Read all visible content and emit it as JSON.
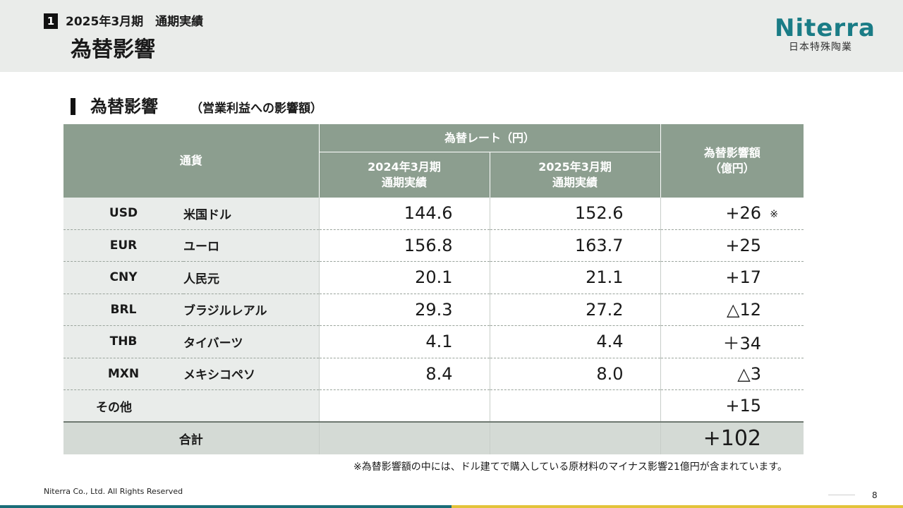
{
  "header": {
    "section_number": "1",
    "period": "2025年3月期　通期実績",
    "title": "為替影響"
  },
  "logo": {
    "word": "Niterra",
    "subtitle": "日本特殊陶業"
  },
  "section": {
    "title": "為替影響",
    "subtitle": "（営業利益への影響額）"
  },
  "table": {
    "headers": {
      "currency": "通貨",
      "rate_group": "為替レート（円）",
      "prev_line1": "2024年3月期",
      "prev_line2": "通期実績",
      "curr_line1": "2025年3月期",
      "curr_line2": "通期実績",
      "impact_line1": "為替影響額",
      "impact_line2": "（億円）"
    },
    "rows": [
      {
        "code": "USD",
        "name": "米国ドル",
        "prev": "144.6",
        "curr": "152.6",
        "impact": "+26",
        "note": "※"
      },
      {
        "code": "EUR",
        "name": "ユーロ",
        "prev": "156.8",
        "curr": "163.7",
        "impact": "+25"
      },
      {
        "code": "CNY",
        "name": "人民元",
        "prev": "20.1",
        "curr": "21.1",
        "impact": "+17"
      },
      {
        "code": "BRL",
        "name": "ブラジルレアル",
        "prev": "29.3",
        "curr": "27.2",
        "impact": "△12"
      },
      {
        "code": "THB",
        "name": "タイバーツ",
        "prev": "4.1",
        "curr": "4.4",
        "impact": "＋34"
      },
      {
        "code": "MXN",
        "name": "メキシコペソ",
        "prev": "8.4",
        "curr": "8.0",
        "impact": "△3"
      }
    ],
    "other": {
      "label": "その他",
      "impact": "+15"
    },
    "total": {
      "label": "合計",
      "impact": "+102"
    }
  },
  "footnote": "※為替影響額の中には、ドル建てで購入している原材料のマイナス影響21億円が含まれています。",
  "copyright": "Niterra Co., Ltd. All Rights Reserved",
  "page_number": "8",
  "colors": {
    "header_bg": "#eaecea",
    "table_header": "#8c9e8f",
    "row_label_bg": "#e9ecea",
    "total_bg": "#d4dad5",
    "brand_teal": "#1a7c86",
    "brand_gold": "#e3c33a"
  }
}
